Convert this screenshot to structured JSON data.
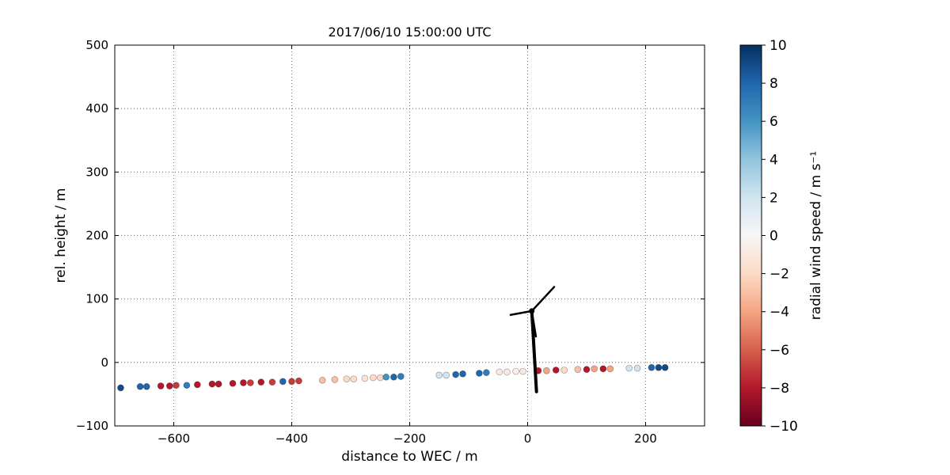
{
  "chart_data": {
    "type": "scatter",
    "title": "2017/06/10 15:00:00 UTC",
    "xlabel": "distance to WEC / m",
    "ylabel": "rel. height / m",
    "xlim": [
      -700,
      300
    ],
    "ylim": [
      -100,
      500
    ],
    "xticks": [
      -600,
      -400,
      -200,
      0,
      200
    ],
    "yticks": [
      -100,
      0,
      100,
      200,
      300,
      400,
      500
    ],
    "grid": true,
    "colorbar": {
      "label": "radial wind speed / m s⁻¹",
      "range": [
        -10,
        10
      ],
      "ticks": [
        10,
        8,
        6,
        4,
        2,
        0,
        -2,
        -4,
        -6,
        -8,
        -10
      ],
      "colormap": "RdBu",
      "colors": [
        "#67001f",
        "#b2182b",
        "#d6604d",
        "#f4a582",
        "#fddbc7",
        "#f7f7f7",
        "#d1e5f0",
        "#92c5de",
        "#4393c3",
        "#2166ac",
        "#053061"
      ]
    },
    "points": [
      [
        -690,
        -40,
        9
      ],
      [
        -657,
        -38,
        8
      ],
      [
        -646,
        -38,
        8
      ],
      [
        -622,
        -37,
        -8
      ],
      [
        -607,
        -37,
        -8
      ],
      [
        -596,
        -36,
        -7
      ],
      [
        -578,
        -36,
        7
      ],
      [
        -560,
        -35,
        -8
      ],
      [
        -535,
        -34,
        -8
      ],
      [
        -524,
        -34,
        -8
      ],
      [
        -500,
        -33,
        -8
      ],
      [
        -482,
        -32,
        -8
      ],
      [
        -470,
        -32,
        -7
      ],
      [
        -452,
        -31,
        -8
      ],
      [
        -433,
        -31,
        -7
      ],
      [
        -415,
        -30,
        8
      ],
      [
        -400,
        -30,
        -7
      ],
      [
        -388,
        -29,
        -7
      ],
      [
        -348,
        -28,
        -3
      ],
      [
        -327,
        -27,
        -3
      ],
      [
        -307,
        -26,
        -2
      ],
      [
        -295,
        -26,
        -2
      ],
      [
        -276,
        -25,
        -1.5
      ],
      [
        -262,
        -24,
        -2
      ],
      [
        -250,
        -24,
        -2
      ],
      [
        -240,
        -23,
        6
      ],
      [
        -227,
        -23,
        8
      ],
      [
        -215,
        -22,
        7
      ],
      [
        -150,
        -20,
        2
      ],
      [
        -138,
        -20,
        2
      ],
      [
        -122,
        -19,
        8
      ],
      [
        -110,
        -18,
        8
      ],
      [
        -82,
        -17,
        8
      ],
      [
        -70,
        -16,
        7
      ],
      [
        -48,
        -15,
        -1
      ],
      [
        -35,
        -15,
        -1
      ],
      [
        -20,
        -14,
        -0.5
      ],
      [
        -8,
        -14,
        -1
      ],
      [
        18,
        -13,
        -8
      ],
      [
        32,
        -13,
        -4
      ],
      [
        48,
        -12,
        -8
      ],
      [
        62,
        -12,
        -2
      ],
      [
        85,
        -11,
        -3
      ],
      [
        100,
        -11,
        -8
      ],
      [
        113,
        -10,
        -4
      ],
      [
        128,
        -10,
        -8
      ],
      [
        140,
        -10,
        -4
      ],
      [
        172,
        -9,
        2
      ],
      [
        186,
        -9,
        2
      ],
      [
        210,
        -8,
        8
      ],
      [
        222,
        -8,
        9
      ],
      [
        233,
        -8,
        9
      ]
    ],
    "turbine": {
      "hub": [
        7,
        81
      ],
      "tower": [
        [
          15,
          -46
        ],
        [
          7,
          81
        ]
      ],
      "blades": [
        [
          [
            7,
            81
          ],
          [
            45,
            119
          ]
        ],
        [
          [
            7,
            81
          ],
          [
            -29,
            75
          ]
        ],
        [
          [
            7,
            81
          ],
          [
            14,
            41
          ]
        ]
      ]
    }
  }
}
